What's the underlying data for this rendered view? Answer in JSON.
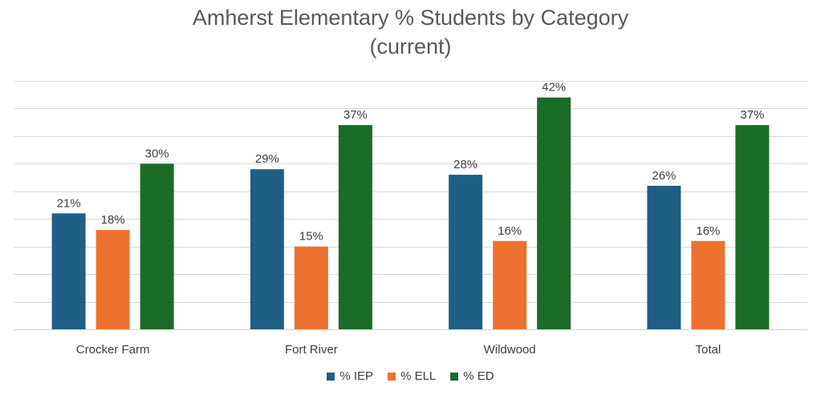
{
  "chart_data": {
    "type": "bar",
    "title_lines": [
      "Amherst Elementary % Students by Category",
      "(current)"
    ],
    "categories": [
      "Crocker Farm",
      "Fort River",
      "Wildwood",
      "Total"
    ],
    "series": [
      {
        "name": "% IEP",
        "color": "#1F5F85",
        "values": [
          21,
          29,
          28,
          26
        ],
        "labels": [
          "21%",
          "29%",
          "28%",
          "26%"
        ]
      },
      {
        "name": "% ELL",
        "color": "#ED7230",
        "values": [
          18,
          15,
          16,
          16
        ],
        "labels": [
          "18%",
          "15%",
          "16%",
          "16%"
        ]
      },
      {
        "name": "% ED",
        "color": "#1B6B28",
        "values": [
          30,
          37,
          42,
          37
        ],
        "labels": [
          "30%",
          "37%",
          "42%",
          "37%"
        ]
      }
    ],
    "ylim": [
      0,
      45
    ],
    "y_gridline_step": 5,
    "y_axis_labels_shown": false,
    "grid": true,
    "legend_position": "bottom-center",
    "gridline_color": "#D9D9D9",
    "label_color": "#404040"
  }
}
